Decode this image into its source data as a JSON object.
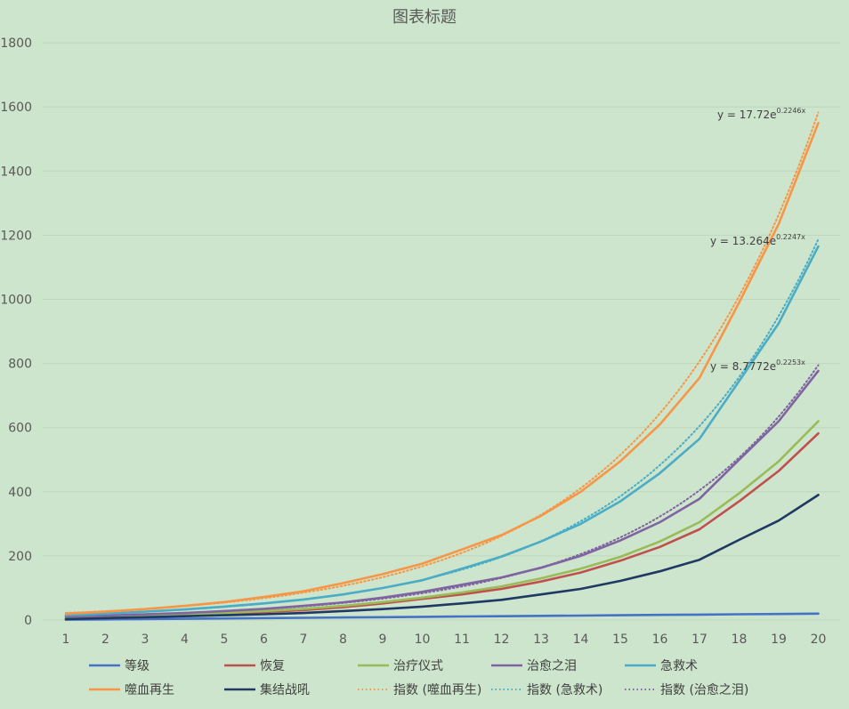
{
  "chart_data": {
    "type": "line",
    "title": "图表标题",
    "xlabel": "",
    "ylabel": "",
    "categories": [
      1,
      2,
      3,
      4,
      5,
      6,
      7,
      8,
      9,
      10,
      11,
      12,
      13,
      14,
      15,
      16,
      17,
      18,
      19,
      20
    ],
    "ylim": [
      0,
      1800
    ],
    "yticks": [
      0,
      200,
      400,
      600,
      800,
      1000,
      1200,
      1400,
      1600,
      1800
    ],
    "grid": "horizontal",
    "legend_position": "bottom",
    "series": [
      {
        "name": "等级",
        "color": "#4472c4",
        "style": "solid",
        "values": [
          1,
          2,
          3,
          4,
          5,
          6,
          7,
          8,
          9,
          10,
          11,
          12,
          13,
          14,
          15,
          16,
          17,
          18,
          19,
          20
        ]
      },
      {
        "name": "恢复",
        "color": "#c0504d",
        "style": "solid",
        "values": [
          8,
          10,
          13,
          16,
          20,
          25,
          31,
          40,
          52,
          66,
          80,
          97,
          120,
          148,
          185,
          228,
          283,
          370,
          465,
          582
        ]
      },
      {
        "name": "治疗仪式",
        "color": "#9bbb59",
        "style": "solid",
        "values": [
          9,
          11,
          14,
          18,
          22,
          28,
          35,
          44,
          56,
          70,
          86,
          105,
          130,
          160,
          197,
          245,
          305,
          395,
          495,
          620
        ]
      },
      {
        "name": "治愈之泪",
        "color": "#8064a2",
        "style": "solid",
        "values": [
          11,
          14,
          18,
          22,
          28,
          35,
          44,
          55,
          70,
          88,
          110,
          133,
          163,
          200,
          248,
          305,
          378,
          500,
          620,
          777
        ]
      },
      {
        "name": "急救术",
        "color": "#4bacc6",
        "style": "solid",
        "values": [
          15,
          20,
          26,
          33,
          42,
          52,
          64,
          80,
          100,
          124,
          160,
          198,
          245,
          300,
          370,
          458,
          565,
          745,
          925,
          1165
        ]
      },
      {
        "name": "噬血再生",
        "color": "#f79646",
        "style": "solid",
        "values": [
          20,
          26,
          34,
          44,
          56,
          72,
          90,
          115,
          143,
          176,
          220,
          265,
          325,
          400,
          495,
          610,
          755,
          990,
          1235,
          1550
        ]
      },
      {
        "name": "集结战吼",
        "color": "#1f3864",
        "style": "solid",
        "values": [
          3,
          6,
          9,
          12,
          15,
          18,
          22,
          28,
          34,
          42,
          52,
          63,
          80,
          97,
          122,
          152,
          188,
          250,
          310,
          390
        ]
      },
      {
        "name": "指数 (噬血再生)",
        "color": "#f79646",
        "style": "dotted",
        "trend": {
          "a": 17.72,
          "b": 0.2246
        }
      },
      {
        "name": "指数 (急救术)",
        "color": "#4bacc6",
        "style": "dotted",
        "trend": {
          "a": 13.264,
          "b": 0.2247
        }
      },
      {
        "name": "指数 (治愈之泪)",
        "color": "#8064a2",
        "style": "dotted",
        "trend": {
          "a": 8.7772,
          "b": 0.2253
        }
      }
    ],
    "annotations": [
      {
        "base": "y = 17.72e",
        "sup": "0.2246x",
        "series": "指数 (噬血再生)"
      },
      {
        "base": "y = 13.264e",
        "sup": "0.2247x",
        "series": "指数 (急救术)"
      },
      {
        "base": "y = 8.7772e",
        "sup": "0.2253x",
        "series": "指数 (治愈之泪)"
      }
    ]
  }
}
